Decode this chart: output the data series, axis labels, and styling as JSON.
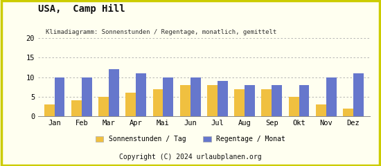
{
  "title": "USA,  Camp Hill",
  "subtitle": "Klimadiagramm: Sonnenstunden / Regentage, monatlich, gemittelt",
  "months": [
    "Jan",
    "Feb",
    "Mar",
    "Apr",
    "Mai",
    "Jun",
    "Jul",
    "Aug",
    "Sep",
    "Okt",
    "Nov",
    "Dez"
  ],
  "sonnenstunden": [
    3,
    4,
    5,
    6,
    7,
    8,
    8,
    7,
    7,
    5,
    3,
    2
  ],
  "regentage": [
    10,
    10,
    12,
    11,
    10,
    10,
    9,
    8,
    8,
    8,
    10,
    11
  ],
  "color_sonne": "#f0c040",
  "color_regen": "#6677cc",
  "background_color": "#fffff0",
  "footer_bg": "#e8aa00",
  "footer_text": "Copyright (C) 2024 urlaubplanen.org",
  "legend_sonne": "Sonnenstunden / Tag",
  "legend_regen": "Regentage / Monat",
  "ylim": [
    0,
    20
  ],
  "yticks": [
    0,
    5,
    10,
    15,
    20
  ],
  "border_color": "#cccc00"
}
